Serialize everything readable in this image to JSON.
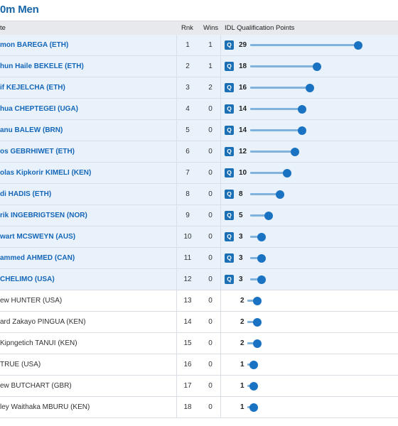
{
  "title": "0m Men",
  "columns": {
    "athlete": "te",
    "rank": "Rnk",
    "wins": "Wins",
    "points": "IDL Qualification Points"
  },
  "qualified_badge": "Q",
  "max_points": 29,
  "rows": [
    {
      "name": "mon BAREGA (ETH)",
      "rank": "1",
      "wins": "1",
      "points": 29,
      "qualified": true
    },
    {
      "name": "hun Haile BEKELE (ETH)",
      "rank": "2",
      "wins": "1",
      "points": 18,
      "qualified": true
    },
    {
      "name": "if KEJELCHA (ETH)",
      "rank": "3",
      "wins": "2",
      "points": 16,
      "qualified": true
    },
    {
      "name": "hua CHEPTEGEI (UGA)",
      "rank": "4",
      "wins": "0",
      "points": 14,
      "qualified": true
    },
    {
      "name": "anu BALEW (BRN)",
      "rank": "5",
      "wins": "0",
      "points": 14,
      "qualified": true
    },
    {
      "name": "os GEBRHIWET (ETH)",
      "rank": "6",
      "wins": "0",
      "points": 12,
      "qualified": true
    },
    {
      "name": "olas Kipkorir KIMELI (KEN)",
      "rank": "7",
      "wins": "0",
      "points": 10,
      "qualified": true
    },
    {
      "name": "di HADIS (ETH)",
      "rank": "8",
      "wins": "0",
      "points": 8,
      "qualified": true
    },
    {
      "name": "rik INGEBRIGTSEN (NOR)",
      "rank": "9",
      "wins": "0",
      "points": 5,
      "qualified": true
    },
    {
      "name": "wart MCSWEYN (AUS)",
      "rank": "10",
      "wins": "0",
      "points": 3,
      "qualified": true
    },
    {
      "name": "ammed AHMED (CAN)",
      "rank": "11",
      "wins": "0",
      "points": 3,
      "qualified": true
    },
    {
      "name": "CHELIMO (USA)",
      "rank": "12",
      "wins": "0",
      "points": 3,
      "qualified": true
    },
    {
      "name": "ew HUNTER (USA)",
      "rank": "13",
      "wins": "0",
      "points": 2,
      "qualified": false
    },
    {
      "name": "ard Zakayo PINGUA (KEN)",
      "rank": "14",
      "wins": "0",
      "points": 2,
      "qualified": false
    },
    {
      "name": "Kipngetich TANUI (KEN)",
      "rank": "15",
      "wins": "0",
      "points": 2,
      "qualified": false
    },
    {
      "name": "TRUE (USA)",
      "rank": "16",
      "wins": "0",
      "points": 1,
      "qualified": false
    },
    {
      "name": "ew BUTCHART (GBR)",
      "rank": "17",
      "wins": "0",
      "points": 1,
      "qualified": false
    },
    {
      "name": "ley Waithaka MBURU (KEN)",
      "rank": "18",
      "wins": "0",
      "points": 1,
      "qualified": false
    }
  ],
  "colors": {
    "title": "#1565a7",
    "qualified_row_bg": "#e9f2fb",
    "badge": "#1a6fb5",
    "bar": "#7fb2dd",
    "dot": "#1a72c2"
  }
}
